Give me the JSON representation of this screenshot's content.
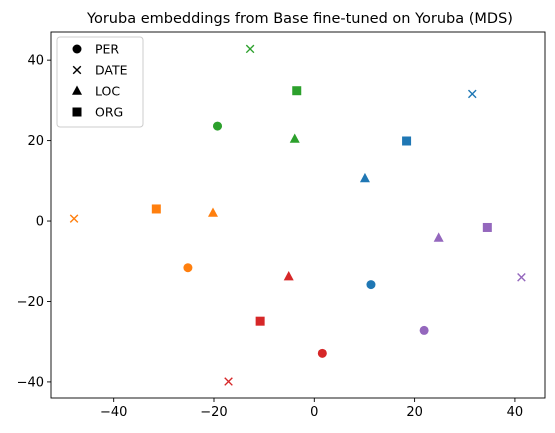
{
  "chart_data": {
    "type": "scatter",
    "title": "Yoruba embeddings from Base fine-tuned on Yoruba (MDS)",
    "xlabel": "",
    "ylabel": "",
    "xlim": [
      -52.5,
      46
    ],
    "ylim": [
      -44,
      47
    ],
    "xticks": [
      -40,
      -20,
      0,
      20,
      40
    ],
    "yticks": [
      -40,
      -20,
      0,
      20,
      40
    ],
    "grid": false,
    "legend": {
      "placement": "top-left",
      "entries": [
        {
          "label": "PER",
          "marker": "circle"
        },
        {
          "label": "DATE",
          "marker": "x"
        },
        {
          "label": "LOC",
          "marker": "triangle"
        },
        {
          "label": "ORG",
          "marker": "square"
        }
      ]
    },
    "colors": {
      "blue": "#1f77b4",
      "orange": "#ff7f0e",
      "green": "#2ca02c",
      "red": "#d62728",
      "purple": "#9467bd"
    },
    "points": [
      {
        "x": 11.3,
        "y": -15.8,
        "marker": "circle",
        "color": "blue"
      },
      {
        "x": 31.5,
        "y": 31.6,
        "marker": "x",
        "color": "blue"
      },
      {
        "x": 10.1,
        "y": 10.6,
        "marker": "triangle",
        "color": "blue"
      },
      {
        "x": 18.4,
        "y": 19.9,
        "marker": "square",
        "color": "blue"
      },
      {
        "x": -25.2,
        "y": -11.6,
        "marker": "circle",
        "color": "orange"
      },
      {
        "x": -47.9,
        "y": 0.6,
        "marker": "x",
        "color": "orange"
      },
      {
        "x": -20.2,
        "y": 2.0,
        "marker": "triangle",
        "color": "orange"
      },
      {
        "x": -31.5,
        "y": 3.0,
        "marker": "square",
        "color": "orange"
      },
      {
        "x": -19.3,
        "y": 23.6,
        "marker": "circle",
        "color": "green"
      },
      {
        "x": -12.8,
        "y": 42.8,
        "marker": "x",
        "color": "green"
      },
      {
        "x": -3.9,
        "y": 20.4,
        "marker": "triangle",
        "color": "green"
      },
      {
        "x": -3.5,
        "y": 32.4,
        "marker": "square",
        "color": "green"
      },
      {
        "x": 1.6,
        "y": -32.9,
        "marker": "circle",
        "color": "red"
      },
      {
        "x": -17.1,
        "y": -39.9,
        "marker": "x",
        "color": "red"
      },
      {
        "x": -5.1,
        "y": -13.8,
        "marker": "triangle",
        "color": "red"
      },
      {
        "x": -10.8,
        "y": -24.9,
        "marker": "square",
        "color": "red"
      },
      {
        "x": 21.9,
        "y": -27.2,
        "marker": "circle",
        "color": "purple"
      },
      {
        "x": 41.3,
        "y": -14.0,
        "marker": "x",
        "color": "purple"
      },
      {
        "x": 24.8,
        "y": -4.2,
        "marker": "triangle",
        "color": "purple"
      },
      {
        "x": 34.5,
        "y": -1.6,
        "marker": "square",
        "color": "purple"
      }
    ]
  }
}
